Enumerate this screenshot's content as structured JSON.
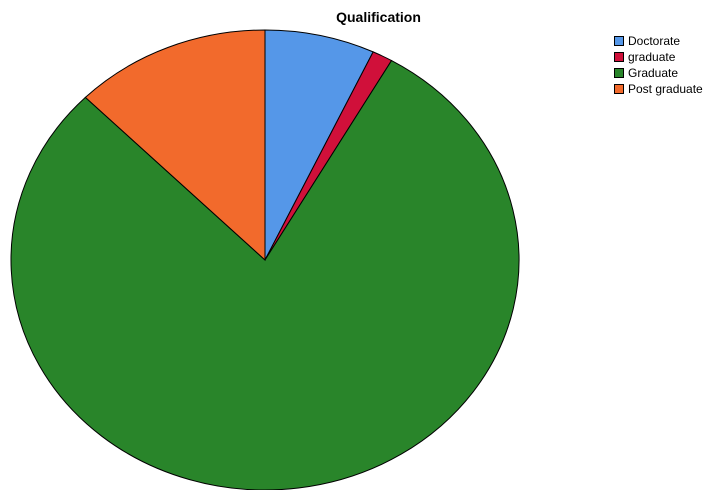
{
  "chart_data": {
    "type": "pie",
    "title": "Qualification",
    "legend_position": "top-right",
    "slices": [
      {
        "label": "Doctorate",
        "value": 7.0,
        "color": "#5597E8"
      },
      {
        "label": "graduate",
        "value": 1.3,
        "color": "#D0103A"
      },
      {
        "label": "Graduate",
        "value": 79.2,
        "color": "#29852A"
      },
      {
        "label": "Post graduate",
        "value": 12.5,
        "color": "#F26A2C"
      }
    ]
  }
}
